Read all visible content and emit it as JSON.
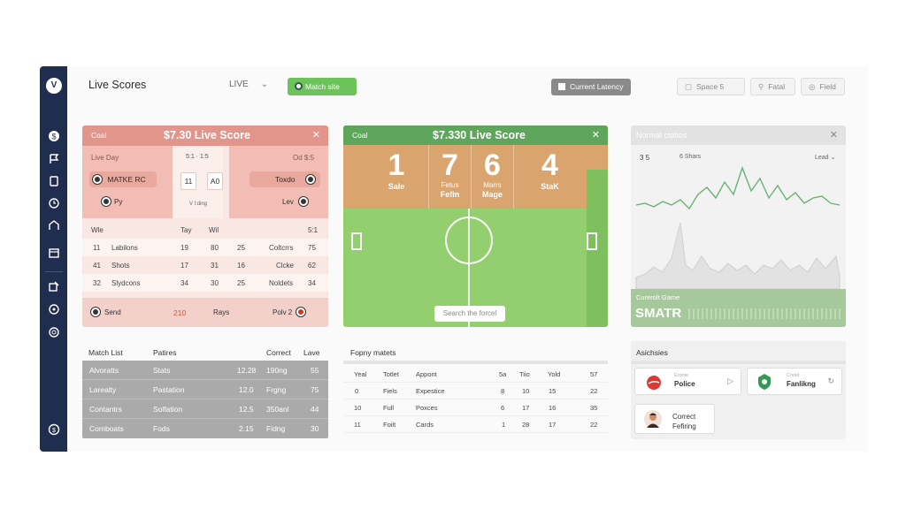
{
  "header": {
    "title": "Live Scores",
    "live_select": "LIVE",
    "match_button": "Match site",
    "latency_button": "Current Latency",
    "ghost_buttons": [
      "Space 5",
      "Fatal",
      "Field"
    ]
  },
  "score_card": {
    "header_left": "Coal",
    "title": "$7.30 Live Score",
    "live_day": "Live Day",
    "time_label": "5:1 · 1:5",
    "right_score": "Od $:5",
    "team_home": "MATKE RC",
    "team_home_sub": "Py",
    "score_home": "11",
    "score_away": "A0",
    "team_away": "Toxdo",
    "team_away_sub": "Lev",
    "mid_note": "V l:ding",
    "col_headers": [
      "Wle",
      "Tay",
      "Wil",
      "5:1"
    ],
    "rows": [
      [
        "11",
        "Labilons",
        "19",
        "80",
        "25",
        "Coltcrrs",
        "75"
      ],
      [
        "41",
        "Shots",
        "17",
        "31",
        "16",
        "Clcke",
        "62"
      ],
      [
        "32",
        "Slydcons",
        "34",
        "30",
        "25",
        "Noldets",
        "34"
      ]
    ],
    "footer_left": "Send",
    "footer_value": "210",
    "footer_mid": "Rays",
    "footer_right": "Polv 2"
  },
  "pitch_card": {
    "header_left": "Coal",
    "title": "$7.330 Live Score",
    "cells": [
      {
        "big": "1",
        "sub": "",
        "label": "Sale"
      },
      {
        "big": "7",
        "sub": "Fetus",
        "label": "Fefin"
      },
      {
        "big": "6",
        "sub": "Marrs",
        "label": "Mage"
      },
      {
        "big": "4",
        "sub": "",
        "label": "StaK"
      }
    ],
    "search": "Search the forcel"
  },
  "trend_card": {
    "title": "Normal ctatios",
    "stat_a": "3 5",
    "stat_b": "6 Shars",
    "dropdown": "Lead",
    "footer_small": "Curerolt Game",
    "footer_big": "SMATR"
  },
  "match_list": {
    "headers": [
      "Match List",
      "Patires",
      "Correct",
      "Lave"
    ],
    "rows": [
      [
        "Alvoratts",
        "Stats",
        "12.28",
        "190ng",
        "55"
      ],
      [
        "Larealty",
        "Pastation",
        "12.0",
        "Frgng",
        "75"
      ],
      [
        "Contantrs",
        "Solfation",
        "12.5",
        "350anl",
        "44"
      ],
      [
        "Comboats",
        "Fods",
        "2.15",
        "Fidng",
        "30"
      ]
    ]
  },
  "fopny": {
    "title": "Fopny matets",
    "headers": [
      "Yeal",
      "Totlet",
      "Appont",
      "5a",
      "Tiio",
      "Yold",
      "57"
    ],
    "rows": [
      [
        "0",
        "Fiels",
        "Expestice",
        "8",
        "10",
        "15",
        "22"
      ],
      [
        "10",
        "Full",
        "Poxces",
        "6",
        "17",
        "16",
        "35"
      ],
      [
        "11",
        "Foilt",
        "Cards",
        "1",
        "28",
        "17",
        "22"
      ]
    ]
  },
  "alerts": {
    "title": "Asichsies",
    "items": [
      {
        "small": "Eronte",
        "name": "Police"
      },
      {
        "small": "Cnoid",
        "name": "Fanlikng"
      },
      {
        "small": "",
        "name": "Correct Fefiring"
      }
    ]
  },
  "colors": {
    "sidebar": "#1f2d4e",
    "score_header": "#e2958b",
    "pitch_green": "#93cf6e",
    "score_orange": "#d9a46e",
    "trend_line": "#6ab273",
    "match_btn": "#6cc35a"
  },
  "icons": [
    "logo-icon",
    "dollar-icon",
    "flag-icon",
    "document-icon",
    "clock-icon",
    "home-icon",
    "calendar-icon",
    "edit-icon",
    "settings-icon",
    "globe-icon",
    "help-icon"
  ]
}
